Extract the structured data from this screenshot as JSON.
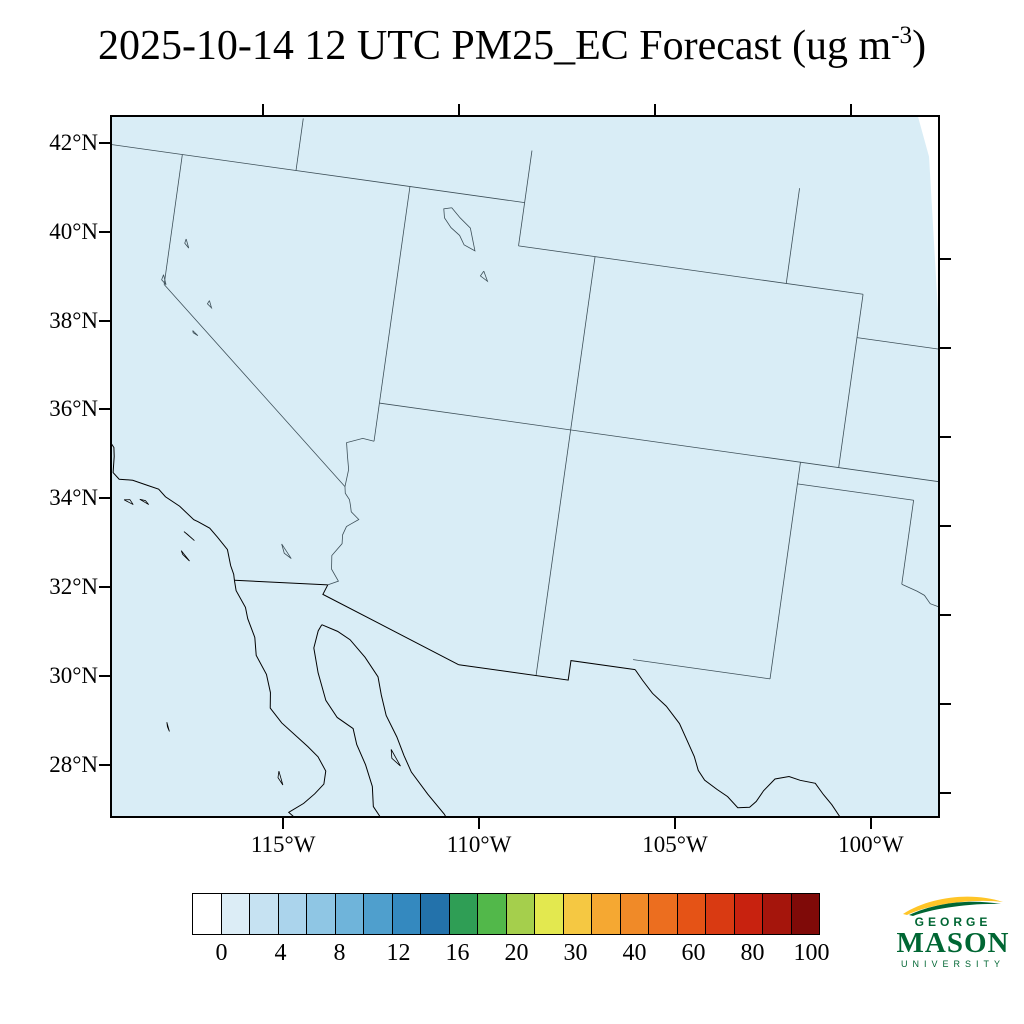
{
  "title": {
    "prefix": "2025-10-14 12 UTC PM25_EC Forecast (ug m",
    "superscript": "-3",
    "suffix": ")"
  },
  "map": {
    "fill_color": "#d9edf6",
    "field_summary": "near-uniform low PM25_EC values (~0-2 ug m-3, palest blue) over the whole domain; no elevated plumes visible",
    "lat_ticks": [
      {
        "label": "42°N",
        "lat": 42
      },
      {
        "label": "40°N",
        "lat": 40
      },
      {
        "label": "38°N",
        "lat": 38
      },
      {
        "label": "36°N",
        "lat": 36
      },
      {
        "label": "34°N",
        "lat": 34
      },
      {
        "label": "32°N",
        "lat": 32
      },
      {
        "label": "30°N",
        "lat": 30
      },
      {
        "label": "28°N",
        "lat": 28
      }
    ],
    "lon_ticks": [
      {
        "label": "115°W",
        "lon": -115
      },
      {
        "label": "110°W",
        "lon": -110
      },
      {
        "label": "105°W",
        "lon": -105
      },
      {
        "label": "100°W",
        "lon": -100
      }
    ]
  },
  "colorbar": {
    "levels": [
      0,
      2,
      4,
      6,
      8,
      10,
      12,
      14,
      16,
      18,
      20,
      25,
      30,
      35,
      40,
      50,
      60,
      70,
      80,
      90,
      100
    ],
    "tick_labels": [
      "0",
      "4",
      "8",
      "12",
      "16",
      "20",
      "30",
      "40",
      "60",
      "80",
      "100"
    ],
    "colors": [
      "#ffffff",
      "#dcedf6",
      "#c6e2f2",
      "#abd4ec",
      "#8fc6e4",
      "#6fb4da",
      "#4f9fcd",
      "#3489bf",
      "#2372ab",
      "#2f9e55",
      "#52b84a",
      "#a5cf4c",
      "#e3e84f",
      "#f5c842",
      "#f5a832",
      "#f08a28",
      "#ec6e1f",
      "#e55316",
      "#d93a12",
      "#c8220f",
      "#a5150c",
      "#7f0a08"
    ]
  },
  "logo": {
    "top": "GEORGE",
    "main": "MASON",
    "bottom": "UNIVERSITY",
    "green": "#006633",
    "gold": "#ffc527"
  },
  "chart_data": {
    "type": "heatmap",
    "title": "2025-10-14 12 UTC PM25_EC Forecast (ug m-3)",
    "variable": "PM25_EC",
    "units": "ug m-3",
    "valid_time": "2025-10-14 12 UTC",
    "lat_tick_values": [
      42,
      40,
      38,
      36,
      34,
      32,
      30,
      28
    ],
    "lon_tick_values": [
      -115,
      -110,
      -105,
      -100
    ],
    "approx_extent": {
      "lon": [
        -121.9,
        -98.1
      ],
      "lat": [
        26.6,
        42.7
      ]
    },
    "colorbar_levels": [
      0,
      2,
      4,
      6,
      8,
      10,
      12,
      14,
      16,
      18,
      20,
      25,
      30,
      35,
      40,
      50,
      60,
      70,
      80,
      90,
      100
    ],
    "colorbar_tick_labels": [
      0,
      4,
      8,
      12,
      16,
      20,
      30,
      40,
      60,
      80,
      100
    ],
    "field_values": "entire mapped field sits in the lowest bins (~0-2 ug m-3), rendered as pale blue; white no-data sliver along upper right edge"
  }
}
